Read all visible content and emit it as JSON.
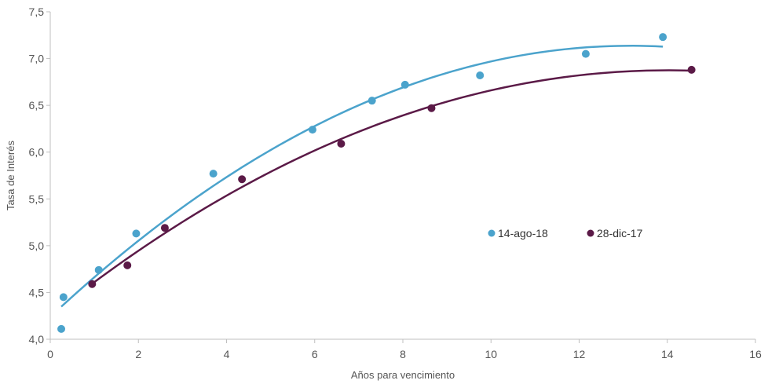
{
  "chart_data": {
    "type": "scatter",
    "title": "",
    "xlabel": "Años para vencimiento",
    "ylabel": "Tasa de Interés",
    "xlim": [
      0,
      16
    ],
    "ylim": [
      4.0,
      7.5
    ],
    "x_ticks": [
      "0",
      "2",
      "4",
      "6",
      "8",
      "10",
      "12",
      "14",
      "16"
    ],
    "y_ticks": [
      "4,0",
      "4,5",
      "5,0",
      "5,5",
      "6,0",
      "6,5",
      "7,0",
      "7,5"
    ],
    "grid": false,
    "legend_position": "center-right",
    "trendline": "polynomial",
    "series": [
      {
        "name": "14-ago-18",
        "color": "#4ba3cc",
        "x": [
          0.25,
          0.3,
          1.1,
          1.95,
          3.7,
          5.95,
          7.3,
          8.05,
          9.75,
          12.15,
          13.9
        ],
        "y": [
          4.11,
          4.45,
          4.74,
          5.13,
          5.77,
          6.24,
          6.55,
          6.72,
          6.82,
          7.05,
          7.23
        ],
        "trend_x_range": [
          0.25,
          13.9
        ]
      },
      {
        "name": "28-dic-17",
        "color": "#5b1a47",
        "x": [
          0.95,
          1.75,
          2.6,
          4.35,
          6.6,
          8.65,
          14.55
        ],
        "y": [
          4.59,
          4.79,
          5.19,
          5.71,
          6.09,
          6.47,
          6.88
        ],
        "trend_x_range": [
          0.95,
          14.55
        ]
      }
    ]
  }
}
